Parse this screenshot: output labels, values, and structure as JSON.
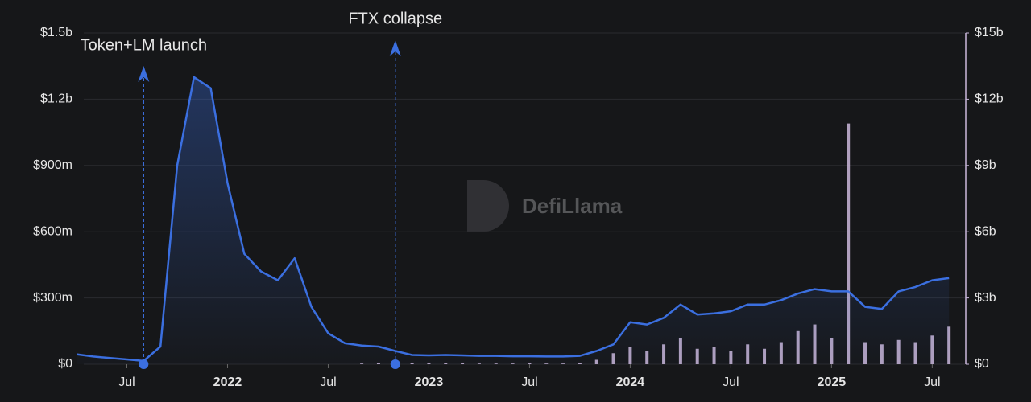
{
  "chart_data": {
    "type": "line",
    "watermark": "DefiLlama",
    "x": [
      "2021-04",
      "2021-05",
      "2021-06",
      "2021-07",
      "2021-08",
      "2021-09",
      "2021-10",
      "2021-11",
      "2021-12",
      "2022-01",
      "2022-02",
      "2022-03",
      "2022-04",
      "2022-05",
      "2022-06",
      "2022-07",
      "2022-08",
      "2022-09",
      "2022-10",
      "2022-11",
      "2022-12",
      "2023-01",
      "2023-02",
      "2023-03",
      "2023-04",
      "2023-05",
      "2023-06",
      "2023-07",
      "2023-08",
      "2023-09",
      "2023-10",
      "2023-11",
      "2023-12",
      "2024-01",
      "2024-02",
      "2024-03",
      "2024-04",
      "2024-05",
      "2024-06",
      "2024-07",
      "2024-08",
      "2024-09",
      "2024-10",
      "2024-11",
      "2024-12",
      "2025-01",
      "2025-02",
      "2025-03",
      "2025-04",
      "2025-05",
      "2025-06",
      "2025-07",
      "2025-08"
    ],
    "series": [
      {
        "color": "#3b6fe0",
        "values": [
          45000000,
          35000000,
          28000000,
          22000000,
          15000000,
          80000000,
          900000000,
          1300000000,
          1250000000,
          820000000,
          500000000,
          420000000,
          380000000,
          480000000,
          260000000,
          140000000,
          95000000,
          85000000,
          80000000,
          60000000,
          42000000,
          40000000,
          42000000,
          40000000,
          38000000,
          38000000,
          36000000,
          36000000,
          35000000,
          35000000,
          38000000,
          60000000,
          90000000,
          190000000,
          180000000,
          210000000,
          270000000,
          225000000,
          230000000,
          240000000,
          270000000,
          270000000,
          290000000,
          320000000,
          340000000,
          330000000,
          330000000,
          260000000,
          250000000,
          330000000,
          350000000,
          380000000,
          390000000
        ]
      },
      {
        "color": "#cbb8dc",
        "axis": "y2",
        "values": [
          null,
          null,
          null,
          null,
          null,
          null,
          null,
          null,
          null,
          null,
          null,
          null,
          null,
          null,
          null,
          null,
          null,
          30000000,
          40000000,
          50000000,
          40000000,
          40000000,
          50000000,
          40000000,
          30000000,
          30000000,
          30000000,
          40000000,
          30000000,
          30000000,
          40000000,
          200000000,
          500000000,
          800000000,
          600000000,
          900000000,
          1200000000,
          700000000,
          800000000,
          600000000,
          900000000,
          700000000,
          1000000000,
          1500000000,
          1800000000,
          1200000000,
          10900000000,
          1000000000,
          900000000,
          1100000000,
          1000000000,
          1300000000,
          1700000000
        ]
      }
    ],
    "xlim": [
      "2021-04",
      "2025-09"
    ],
    "xticks": [
      {
        "value": "2021-07",
        "label": "Jul"
      },
      {
        "value": "2022-01",
        "label": "2022"
      },
      {
        "value": "2022-07",
        "label": "Jul"
      },
      {
        "value": "2023-01",
        "label": "2023"
      },
      {
        "value": "2023-07",
        "label": "Jul"
      },
      {
        "value": "2024-01",
        "label": "2024"
      },
      {
        "value": "2024-07",
        "label": "Jul"
      },
      {
        "value": "2025-01",
        "label": "2025"
      },
      {
        "value": "2025-07",
        "label": "Jul"
      }
    ],
    "ylim": [
      0,
      1500000000
    ],
    "yticks": [
      {
        "value": 0,
        "label": "$0"
      },
      {
        "value": 300000000,
        "label": "$300m"
      },
      {
        "value": 600000000,
        "label": "$600m"
      },
      {
        "value": 900000000,
        "label": "$900m"
      },
      {
        "value": 1200000000,
        "label": "$1.2b"
      },
      {
        "value": 1500000000,
        "label": "$1.5b"
      }
    ],
    "y2lim": [
      0,
      15000000000
    ],
    "y2ticks": [
      {
        "value": 0,
        "label": "$0"
      },
      {
        "value": 3000000000,
        "label": "$3b"
      },
      {
        "value": 6000000000,
        "label": "$6b"
      },
      {
        "value": 9000000000,
        "label": "$9b"
      },
      {
        "value": 12000000000,
        "label": "$12b"
      },
      {
        "value": 15000000000,
        "label": "$15b"
      }
    ],
    "grid": true,
    "annotations": [
      {
        "x": "2021-08",
        "label": "Token+LM launch"
      },
      {
        "x": "2022-11",
        "label": "FTX collapse"
      }
    ]
  }
}
